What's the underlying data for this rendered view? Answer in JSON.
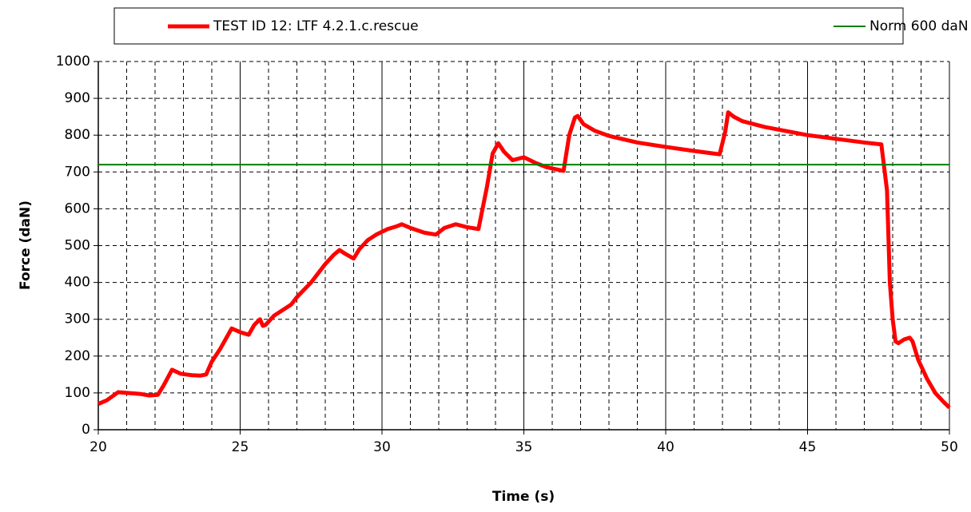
{
  "chart_data": {
    "type": "line",
    "xlabel": "Time (s)",
    "ylabel": "Force (daN)",
    "xlim": [
      20,
      50
    ],
    "ylim": [
      0,
      1000
    ],
    "xticks": [
      20,
      25,
      30,
      35,
      40,
      45,
      50
    ],
    "yticks": [
      0,
      100,
      200,
      300,
      400,
      500,
      600,
      700,
      800,
      900,
      1000
    ],
    "x_minor_grid": [
      21,
      22,
      23,
      24,
      26,
      27,
      28,
      29,
      31,
      32,
      33,
      34,
      36,
      37,
      38,
      39,
      41,
      42,
      43,
      44,
      46,
      47,
      48,
      49
    ],
    "grid": true,
    "legend": "top",
    "series": [
      {
        "name": "TEST ID 12: LTF 4.2.1.c.rescue",
        "color": "#ff0000",
        "x": [
          20,
          20.3,
          20.7,
          21,
          21.5,
          21.8,
          22.1,
          22.3,
          22.6,
          22.9,
          23.3,
          23.6,
          23.8,
          24,
          24.3,
          24.7,
          25,
          25.3,
          25.5,
          25.7,
          25.8,
          25.9,
          26.2,
          26.5,
          26.8,
          27,
          27.5,
          28,
          28.3,
          28.5,
          28.7,
          29,
          29.2,
          29.5,
          29.8,
          30.2,
          30.5,
          30.7,
          31,
          31.5,
          31.9,
          32.2,
          32.6,
          33,
          33.4,
          33.7,
          33.9,
          34.1,
          34.3,
          34.6,
          35,
          35.4,
          35.8,
          36.4,
          36.6,
          36.8,
          36.9,
          37.1,
          37.5,
          38,
          39,
          40,
          41,
          41.9,
          42.1,
          42.2,
          42.4,
          42.7,
          43.5,
          45,
          46,
          47,
          47.6,
          47.8,
          47.9,
          48,
          48.1,
          48.2,
          48.4,
          48.6,
          48.7,
          48.9,
          49.2,
          49.5,
          49.8,
          50
        ],
        "values": [
          70,
          80,
          102,
          100,
          97,
          93,
          95,
          120,
          163,
          152,
          148,
          147,
          150,
          185,
          220,
          275,
          265,
          258,
          285,
          300,
          282,
          285,
          310,
          325,
          340,
          360,
          400,
          450,
          475,
          488,
          478,
          465,
          490,
          515,
          530,
          545,
          552,
          558,
          548,
          535,
          530,
          548,
          558,
          550,
          545,
          660,
          750,
          778,
          755,
          732,
          740,
          725,
          713,
          703,
          800,
          848,
          852,
          830,
          812,
          798,
          780,
          768,
          757,
          748,
          810,
          862,
          850,
          838,
          822,
          800,
          790,
          780,
          775,
          650,
          400,
          300,
          240,
          235,
          245,
          250,
          240,
          190,
          140,
          100,
          75,
          60
        ]
      },
      {
        "name": "Norm 600 daN",
        "color": "#008000",
        "x": [
          20,
          50
        ],
        "values": [
          720,
          720
        ]
      }
    ]
  }
}
